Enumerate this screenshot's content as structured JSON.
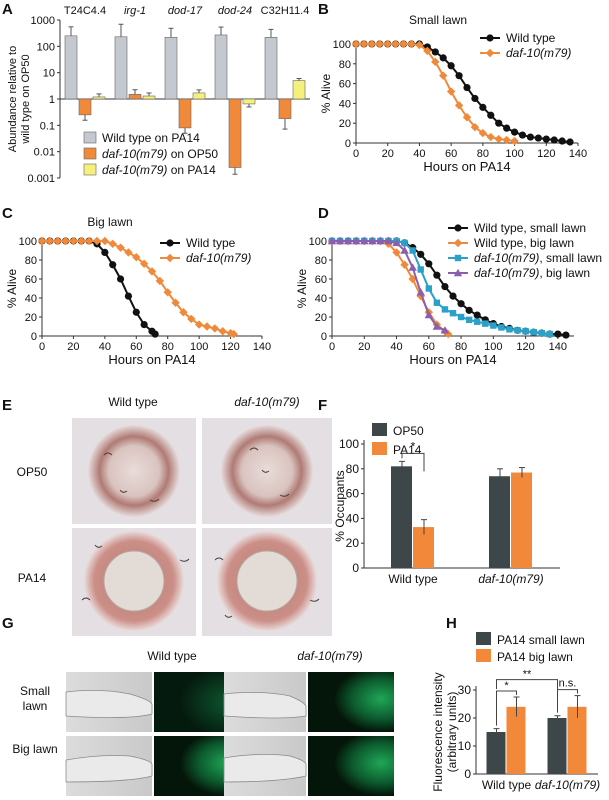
{
  "colors": {
    "grey_bar": "#c4c8cf",
    "orange": "#f08a3a",
    "yellow": "#f5f07a",
    "black": "#111111",
    "blue": "#2aa1c9",
    "purple": "#8a5fb0",
    "dark_bar": "#3d4648",
    "orange_bar": "#f2893a"
  },
  "panel_labels": [
    "A",
    "B",
    "C",
    "D",
    "E",
    "F",
    "G",
    "H"
  ],
  "chart_data": [
    {
      "panel": "A",
      "type": "bar",
      "scale": "log",
      "ylabel": "Abundance relative to wild type on OP50",
      "ylim": [
        0.001,
        1000
      ],
      "yticks": [
        "1000",
        "100",
        "10",
        "1",
        "0.1",
        "0.01",
        "0.001"
      ],
      "categories": [
        "T24C4.4",
        "irg-1",
        "dod-17",
        "dod-24",
        "C32H11.4"
      ],
      "series": [
        {
          "name": "Wild type on PA14",
          "values": [
            250,
            230,
            220,
            270,
            220
          ],
          "err": [
            2.2,
            3.0,
            2.2,
            2.0,
            2.0
          ]
        },
        {
          "name": "daf-10(m79) on OP50",
          "values": [
            0.25,
            1.5,
            0.08,
            0.0025,
            0.18
          ],
          "err": [
            1.6,
            1.5,
            1.6,
            1.8,
            2.5
          ]
        },
        {
          "name": "daf-10(m79) on PA14",
          "values": [
            1.2,
            1.3,
            1.7,
            0.65,
            5.0
          ],
          "err": [
            1.3,
            1.3,
            1.3,
            1.3,
            1.2
          ]
        }
      ]
    },
    {
      "panel": "B",
      "type": "line",
      "title": "Small lawn",
      "xlabel": "Hours on PA14",
      "ylabel": "% Alive",
      "xlim": [
        0,
        140
      ],
      "ylim": [
        0,
        100
      ],
      "xticks": [
        "0",
        "20",
        "40",
        "60",
        "80",
        "100",
        "120",
        "140"
      ],
      "yticks": [
        "0",
        "20",
        "40",
        "60",
        "80",
        "100"
      ],
      "series": [
        {
          "name": "Wild type",
          "x": [
            0,
            5,
            10,
            15,
            20,
            25,
            30,
            35,
            40,
            45,
            50,
            55,
            60,
            65,
            70,
            75,
            80,
            85,
            90,
            95,
            100,
            105,
            110,
            115,
            120,
            125,
            130,
            135
          ],
          "y": [
            100,
            100,
            100,
            100,
            100,
            100,
            100,
            100,
            100,
            97,
            92,
            86,
            78,
            68,
            56,
            45,
            36,
            28,
            20,
            15,
            11,
            8,
            6,
            5,
            4,
            3,
            2,
            1
          ]
        },
        {
          "name": "daf-10(m79)",
          "x": [
            0,
            5,
            10,
            15,
            20,
            25,
            30,
            35,
            40,
            45,
            50,
            55,
            60,
            65,
            70,
            75,
            80,
            85,
            90,
            95,
            100
          ],
          "y": [
            100,
            100,
            100,
            100,
            100,
            100,
            100,
            100,
            99,
            93,
            82,
            68,
            52,
            38,
            26,
            16,
            10,
            6,
            4,
            3,
            2
          ]
        }
      ]
    },
    {
      "panel": "C",
      "type": "line",
      "title": "Big lawn",
      "xlabel": "Hours on PA14",
      "ylabel": "% Alive",
      "xlim": [
        0,
        140
      ],
      "ylim": [
        0,
        100
      ],
      "xticks": [
        "0",
        "20",
        "40",
        "60",
        "80",
        "100",
        "120",
        "140"
      ],
      "yticks": [
        "0",
        "20",
        "40",
        "60",
        "80",
        "100"
      ],
      "series": [
        {
          "name": "Wild type",
          "x": [
            0,
            5,
            10,
            15,
            20,
            25,
            30,
            35,
            40,
            45,
            50,
            55,
            60,
            65,
            70,
            72
          ],
          "y": [
            100,
            100,
            100,
            100,
            100,
            100,
            100,
            97,
            88,
            75,
            60,
            42,
            25,
            12,
            5,
            2
          ]
        },
        {
          "name": "daf-10(m79)",
          "x": [
            0,
            5,
            10,
            15,
            20,
            25,
            30,
            35,
            40,
            45,
            50,
            55,
            60,
            65,
            70,
            75,
            80,
            85,
            90,
            95,
            100,
            105,
            110,
            115,
            120,
            122
          ],
          "y": [
            100,
            100,
            100,
            100,
            100,
            100,
            100,
            100,
            100,
            97,
            93,
            88,
            83,
            76,
            68,
            58,
            46,
            35,
            25,
            18,
            12,
            10,
            8,
            5,
            3,
            2
          ]
        }
      ]
    },
    {
      "panel": "D",
      "type": "line",
      "xlabel": "Hours on PA14",
      "ylabel": "% Alive",
      "xlim": [
        0,
        150
      ],
      "ylim": [
        0,
        100
      ],
      "xticks": [
        "0",
        "20",
        "40",
        "60",
        "80",
        "100",
        "120",
        "140"
      ],
      "yticks": [
        "0",
        "20",
        "40",
        "60",
        "80",
        "100"
      ],
      "series": [
        {
          "name": "Wild type, small lawn",
          "x": [
            0,
            5,
            10,
            15,
            20,
            25,
            30,
            35,
            40,
            45,
            50,
            55,
            60,
            65,
            70,
            75,
            80,
            85,
            90,
            95,
            100,
            105,
            110,
            115,
            120,
            125,
            130,
            135,
            140,
            145
          ],
          "y": [
            100,
            100,
            100,
            100,
            100,
            100,
            100,
            100,
            100,
            98,
            93,
            86,
            76,
            64,
            52,
            42,
            34,
            27,
            22,
            17,
            13,
            10,
            8,
            6,
            5,
            4,
            3,
            2,
            2,
            1
          ]
        },
        {
          "name": "Wild type, big lawn",
          "x": [
            0,
            5,
            10,
            15,
            20,
            25,
            30,
            35,
            40,
            45,
            50,
            55,
            60,
            65,
            70,
            72
          ],
          "y": [
            100,
            100,
            100,
            100,
            100,
            100,
            100,
            97,
            88,
            75,
            60,
            42,
            25,
            12,
            5,
            2
          ]
        },
        {
          "name": "daf-10(m79), small lawn",
          "x": [
            0,
            5,
            10,
            15,
            20,
            25,
            30,
            35,
            40,
            45,
            50,
            55,
            60,
            65,
            70,
            75,
            80,
            85,
            90,
            95,
            100,
            105,
            110,
            115,
            120,
            125,
            130,
            135
          ],
          "y": [
            100,
            100,
            100,
            100,
            100,
            100,
            100,
            100,
            100,
            98,
            90,
            70,
            50,
            35,
            28,
            24,
            20,
            17,
            15,
            13,
            11,
            9,
            7,
            6,
            5,
            4,
            3,
            2
          ]
        },
        {
          "name": "daf-10(m79), big lawn",
          "x": [
            0,
            5,
            10,
            15,
            20,
            25,
            30,
            35,
            40,
            45,
            50,
            55,
            60,
            65,
            70
          ],
          "y": [
            100,
            100,
            100,
            100,
            100,
            100,
            100,
            100,
            98,
            90,
            72,
            46,
            22,
            10,
            6
          ]
        }
      ]
    },
    {
      "panel": "F",
      "type": "bar",
      "ylabel": "% Occupants",
      "ylim": [
        0,
        100
      ],
      "yticks": [
        "0",
        "20",
        "40",
        "60",
        "80",
        "100"
      ],
      "categories": [
        "Wild type",
        "daf-10(m79)"
      ],
      "significance": [
        "*"
      ],
      "series": [
        {
          "name": "OP50",
          "values": [
            82,
            74
          ],
          "err": [
            4,
            6
          ]
        },
        {
          "name": "PA14",
          "values": [
            33,
            77
          ],
          "err": [
            6,
            4
          ]
        }
      ]
    },
    {
      "panel": "H",
      "type": "bar",
      "ylabel": "Fluorescence intensity (arbitrary units)",
      "ylim": [
        0,
        30
      ],
      "yticks": [
        "0",
        "10",
        "20",
        "30"
      ],
      "categories": [
        "Wild type",
        "daf-10(m79)"
      ],
      "significance": [
        "*",
        "**",
        "n.s."
      ],
      "series": [
        {
          "name": "PA14 small lawn",
          "values": [
            15,
            20
          ],
          "err": [
            1.2,
            0.8
          ]
        },
        {
          "name": "PA14 big lawn",
          "values": [
            24,
            24
          ],
          "err": [
            3.5,
            4
          ]
        }
      ]
    }
  ],
  "panel_e": {
    "columns": [
      "Wild type",
      "daf-10(m79)"
    ],
    "rows": [
      "OP50",
      "PA14"
    ]
  },
  "panel_g": {
    "columns": [
      "Wild type",
      "daf-10(m79)"
    ],
    "rows": [
      "Small lawn",
      "Big lawn"
    ]
  }
}
